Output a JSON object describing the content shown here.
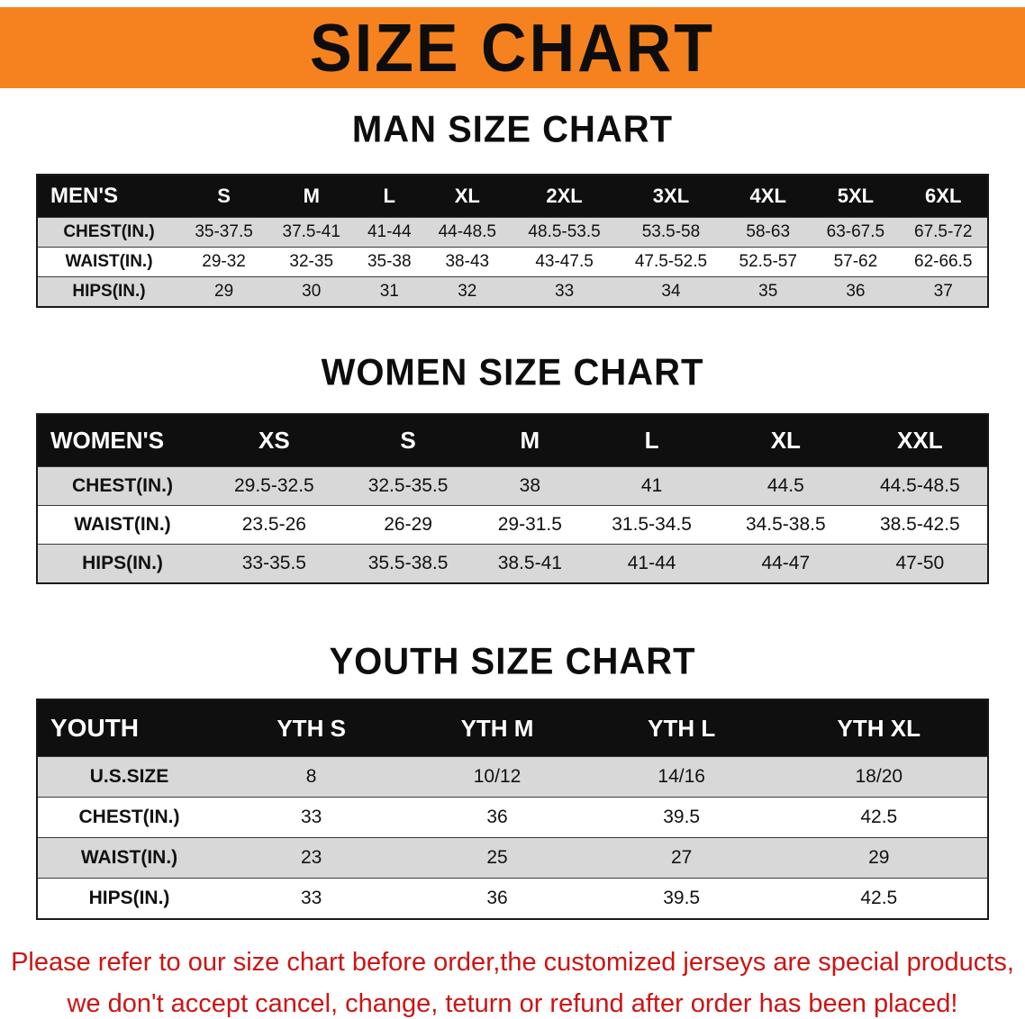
{
  "banner": {
    "title": "SIZE CHART",
    "bg_color": "#f5821e"
  },
  "colors": {
    "header_row_bg": "#0f0f0f",
    "header_row_text": "#ffffff",
    "stripe_row_bg": "#d8d8d8",
    "note_text": "#cc1414"
  },
  "sections": [
    {
      "heading": "MAN SIZE CHART",
      "table": {
        "header": [
          "MEN'S",
          "S",
          "M",
          "L",
          "XL",
          "2XL",
          "3XL",
          "4XL",
          "5XL",
          "6XL"
        ],
        "rows": [
          {
            "label": "CHEST(IN.)",
            "values": [
              "35-37.5",
              "37.5-41",
              "41-44",
              "44-48.5",
              "48.5-53.5",
              "53.5-58",
              "58-63",
              "63-67.5",
              "67.5-72"
            ]
          },
          {
            "label": "WAIST(IN.)",
            "values": [
              "29-32",
              "32-35",
              "35-38",
              "38-43",
              "43-47.5",
              "47.5-52.5",
              "52.5-57",
              "57-62",
              "62-66.5"
            ]
          },
          {
            "label": "HIPS(IN.)",
            "values": [
              "29",
              "30",
              "31",
              "32",
              "33",
              "34",
              "35",
              "36",
              "37"
            ]
          }
        ]
      }
    },
    {
      "heading": "WOMEN SIZE CHART",
      "table": {
        "header": [
          "WOMEN'S",
          "XS",
          "S",
          "M",
          "L",
          "XL",
          "XXL"
        ],
        "rows": [
          {
            "label": "CHEST(IN.)",
            "values": [
              "29.5-32.5",
              "32.5-35.5",
              "38",
              "41",
              "44.5",
              "44.5-48.5"
            ]
          },
          {
            "label": "WAIST(IN.)",
            "values": [
              "23.5-26",
              "26-29",
              "29-31.5",
              "31.5-34.5",
              "34.5-38.5",
              "38.5-42.5"
            ]
          },
          {
            "label": "HIPS(IN.)",
            "values": [
              "33-35.5",
              "35.5-38.5",
              "38.5-41",
              "41-44",
              "44-47",
              "47-50"
            ]
          }
        ]
      }
    },
    {
      "heading": "YOUTH SIZE CHART",
      "table": {
        "header": [
          "YOUTH",
          "YTH S",
          "YTH M",
          "YTH L",
          "YTH XL"
        ],
        "rows": [
          {
            "label": "U.S.SIZE",
            "values": [
              "8",
              "10/12",
              "14/16",
              "18/20"
            ]
          },
          {
            "label": "CHEST(IN.)",
            "values": [
              "33",
              "36",
              "39.5",
              "42.5"
            ]
          },
          {
            "label": "WAIST(IN.)",
            "values": [
              "23",
              "25",
              "27",
              "29"
            ]
          },
          {
            "label": "HIPS(IN.)",
            "values": [
              "33",
              "36",
              "39.5",
              "42.5"
            ]
          }
        ]
      }
    }
  ],
  "note": {
    "line1": "Please refer to our size chart before order,the customized jerseys are special products,",
    "line2": "we don't accept cancel, change, teturn or refund after order has been placed!"
  }
}
